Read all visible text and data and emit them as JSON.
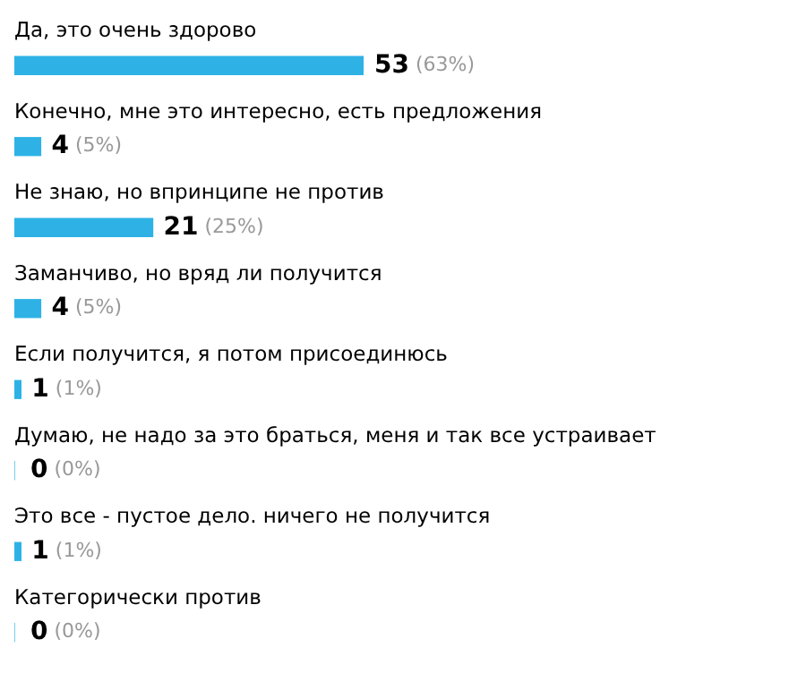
{
  "chart_data": {
    "type": "bar",
    "orientation": "horizontal",
    "categories": [
      "Да, это очень здорово",
      "Конечно, мне это интересно, есть предложения",
      "Не знаю, но впринципе не против",
      "Заманчиво, но вряд ли получится",
      "Если получится, я потом присоединюсь",
      "Думаю, не надо за это браться, меня и так все устраивает",
      "Это все - пустое дело. ничего не получится",
      "Категорически против"
    ],
    "values": [
      53,
      4,
      21,
      4,
      1,
      0,
      1,
      0
    ],
    "value_labels": [
      "53 (63%)",
      "4 (5%)",
      "21 (25%)",
      "4 (5%)",
      "1 (1%)",
      "0 (0%)",
      "1 (1%)",
      "0 (0%)"
    ],
    "color": "#2eb2e6",
    "legend": false
  }
}
